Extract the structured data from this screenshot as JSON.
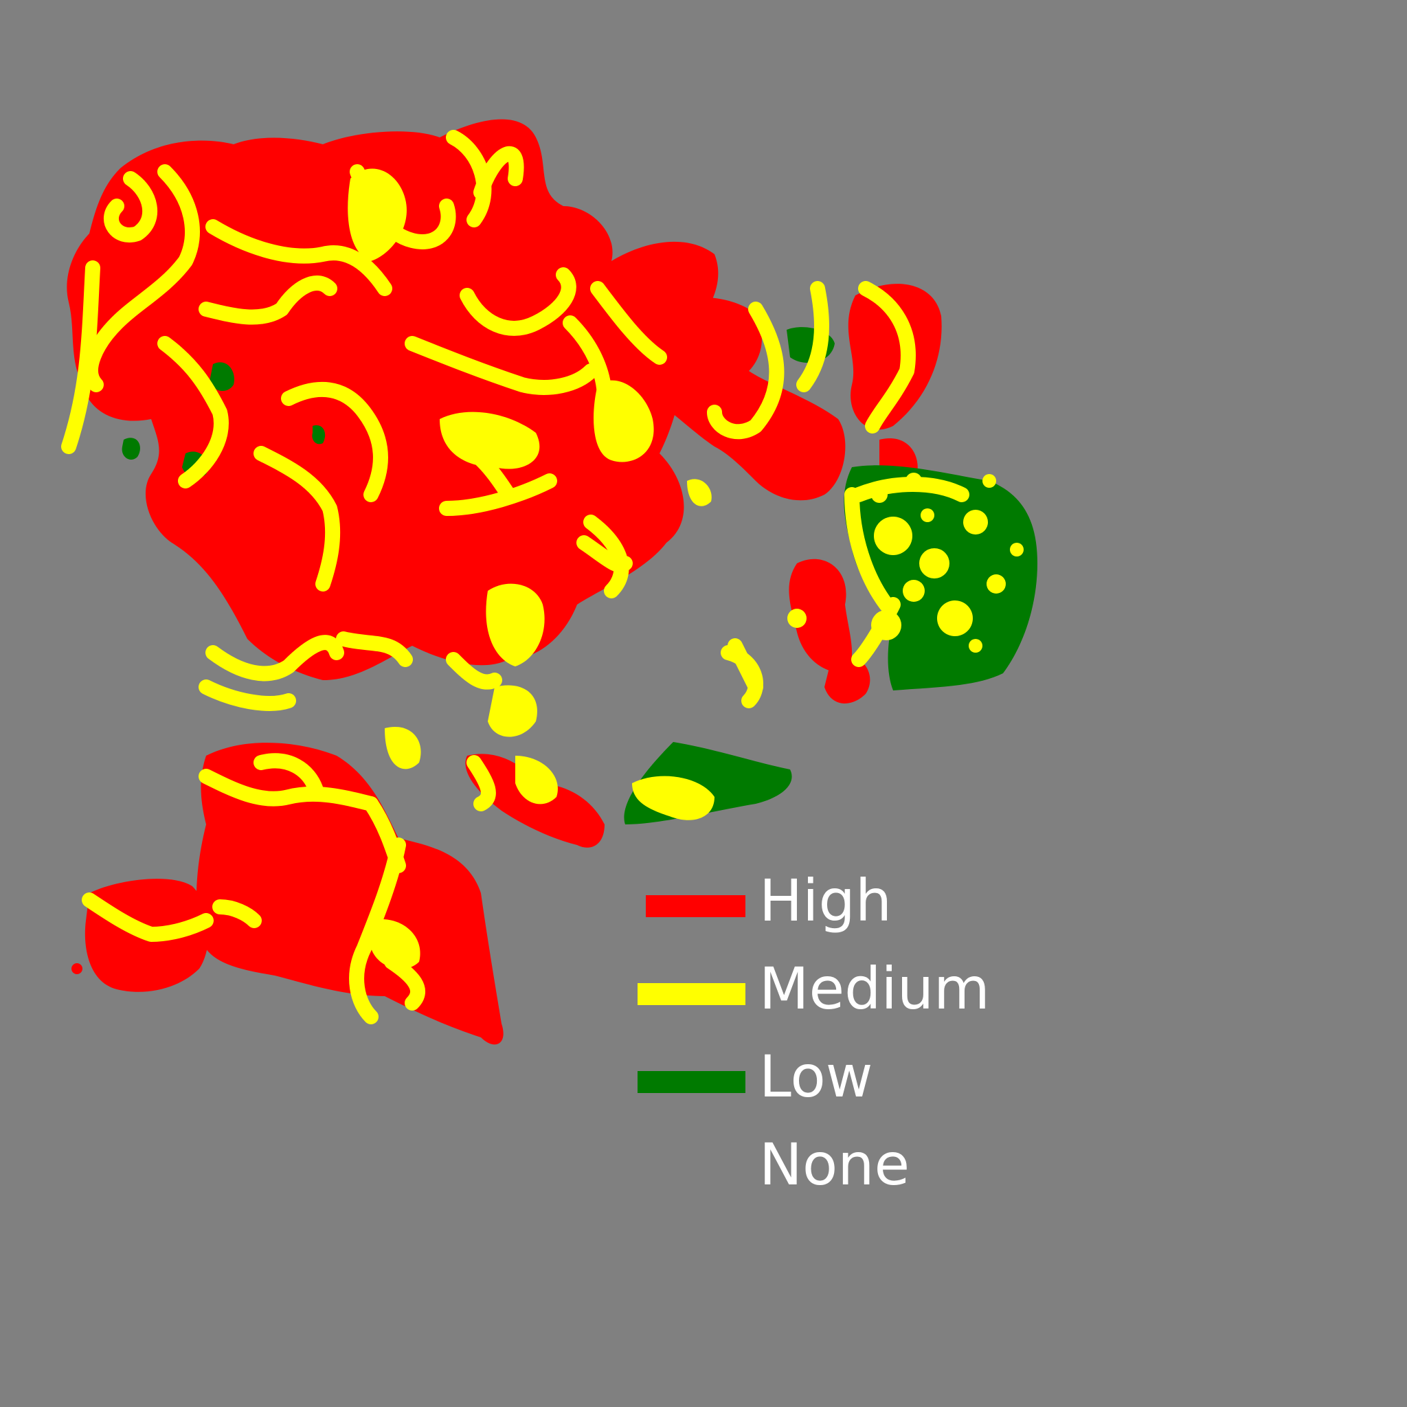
{
  "colors": {
    "background": "#808080",
    "high": "#ff0000",
    "medium": "#ffff00",
    "low": "#007a00",
    "label": "#ffffff"
  },
  "legend": {
    "items": [
      {
        "label": "High",
        "color": "#ff0000"
      },
      {
        "label": "Medium",
        "color": "#ffff00"
      },
      {
        "label": "Low",
        "color": "#007a00"
      },
      {
        "label": "None",
        "color": ""
      }
    ]
  }
}
